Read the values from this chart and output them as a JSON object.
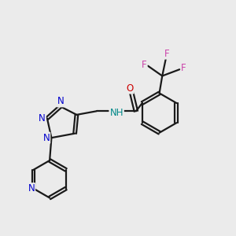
{
  "background_color": "#ebebeb",
  "bond_color": "#1a1a1a",
  "N_color": "#0000cc",
  "O_color": "#cc0000",
  "F_color": "#cc44aa",
  "NH_color": "#008888",
  "line_width": 1.6,
  "font_size": 8.5,
  "fig_xlim": [
    -0.5,
    6.0
  ],
  "fig_ylim": [
    -3.2,
    2.4
  ]
}
